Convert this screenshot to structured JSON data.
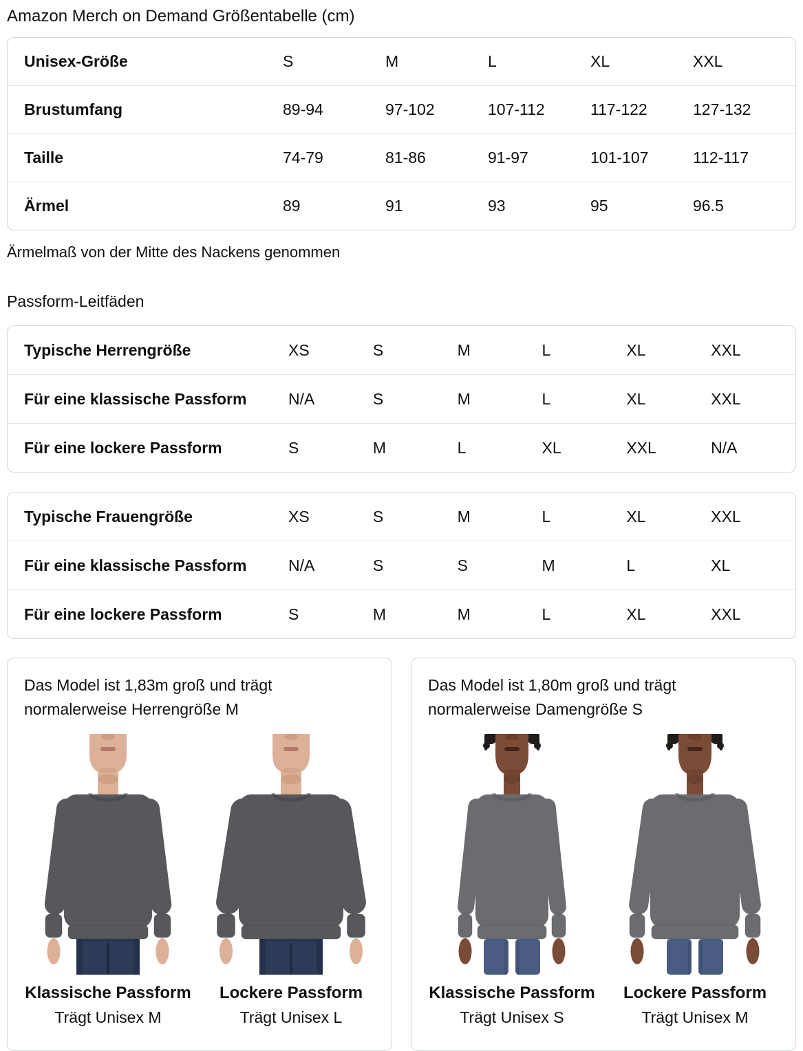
{
  "page": {
    "title": "Amazon Merch on Demand Größentabelle (cm)",
    "note": "Ärmelmaß von der Mitte des Nackens genommen",
    "section_title": "Passform-Leitfäden"
  },
  "size_table": {
    "rows": [
      {
        "label": "Unisex-Größe",
        "values": [
          "S",
          "M",
          "L",
          "XL",
          "XXL"
        ]
      },
      {
        "label": "Brustumfang",
        "values": [
          "89-94",
          "97-102",
          "107-112",
          "117-122",
          "127-132"
        ]
      },
      {
        "label": "Taille",
        "values": [
          "74-79",
          "81-86",
          "91-97",
          "101-107",
          "112-117"
        ]
      },
      {
        "label": "Ärmel",
        "values": [
          "89",
          "91",
          "93",
          "95",
          "96.5"
        ]
      }
    ]
  },
  "mens_fit_table": {
    "rows": [
      {
        "label": "Typische Herrengröße",
        "values": [
          "XS",
          "S",
          "M",
          "L",
          "XL",
          "XXL"
        ]
      },
      {
        "label": "Für eine klassische Passform",
        "values": [
          "N/A",
          "S",
          "M",
          "L",
          "XL",
          "XXL"
        ]
      },
      {
        "label": "Für eine lockere Passform",
        "values": [
          "S",
          "M",
          "L",
          "XL",
          "XXL",
          "N/A"
        ]
      }
    ]
  },
  "womens_fit_table": {
    "rows": [
      {
        "label": "Typische Frauengröße",
        "values": [
          "XS",
          "S",
          "M",
          "L",
          "XL",
          "XXL"
        ]
      },
      {
        "label": "Für eine klassische Passform",
        "values": [
          "N/A",
          "S",
          "S",
          "M",
          "L",
          "XL"
        ]
      },
      {
        "label": "Für eine lockere Passform",
        "values": [
          "S",
          "M",
          "M",
          "L",
          "XL",
          "XXL"
        ]
      }
    ]
  },
  "cards": [
    {
      "line1": "Das Model ist 1,83m groß und trägt",
      "line2": "normalerweise Herrengröße M",
      "figures": [
        {
          "model": "male",
          "fit": "classic",
          "caption": "Klassische Passform",
          "sub": "Trägt Unisex M"
        },
        {
          "model": "male",
          "fit": "loose",
          "caption": "Lockere Passform",
          "sub": "Trägt Unisex L"
        }
      ]
    },
    {
      "line1": "Das Model ist 1,80m groß und trägt",
      "line2": "normalerweise Damengröße S",
      "figures": [
        {
          "model": "female",
          "fit": "classic",
          "caption": "Klassische Passform",
          "sub": "Trägt Unisex S"
        },
        {
          "model": "female",
          "fit": "loose",
          "caption": "Lockere Passform",
          "sub": "Trägt Unisex M"
        }
      ]
    }
  ],
  "colors": {
    "border": "#d5d9d9",
    "divider": "#e3e6e6",
    "text": "#0f1111"
  },
  "models": {
    "male": {
      "skin": "#dcb197",
      "skin_shadow": "#c18f72",
      "lips": "#b5796a",
      "shirt": "#57585c",
      "shirt_dark": "#3f4045",
      "jeans": "#2d3b59",
      "jeans_dark": "#1f2a42",
      "hair": "#b99477"
    },
    "female": {
      "skin": "#7a4b36",
      "skin_shadow": "#5d3728",
      "lips": "#46261c",
      "shirt": "#6a6c70",
      "shirt_dark": "#515257",
      "jeans": "#4a5c82",
      "jeans_dark": "#37466a",
      "hair": "#201c1a"
    }
  }
}
